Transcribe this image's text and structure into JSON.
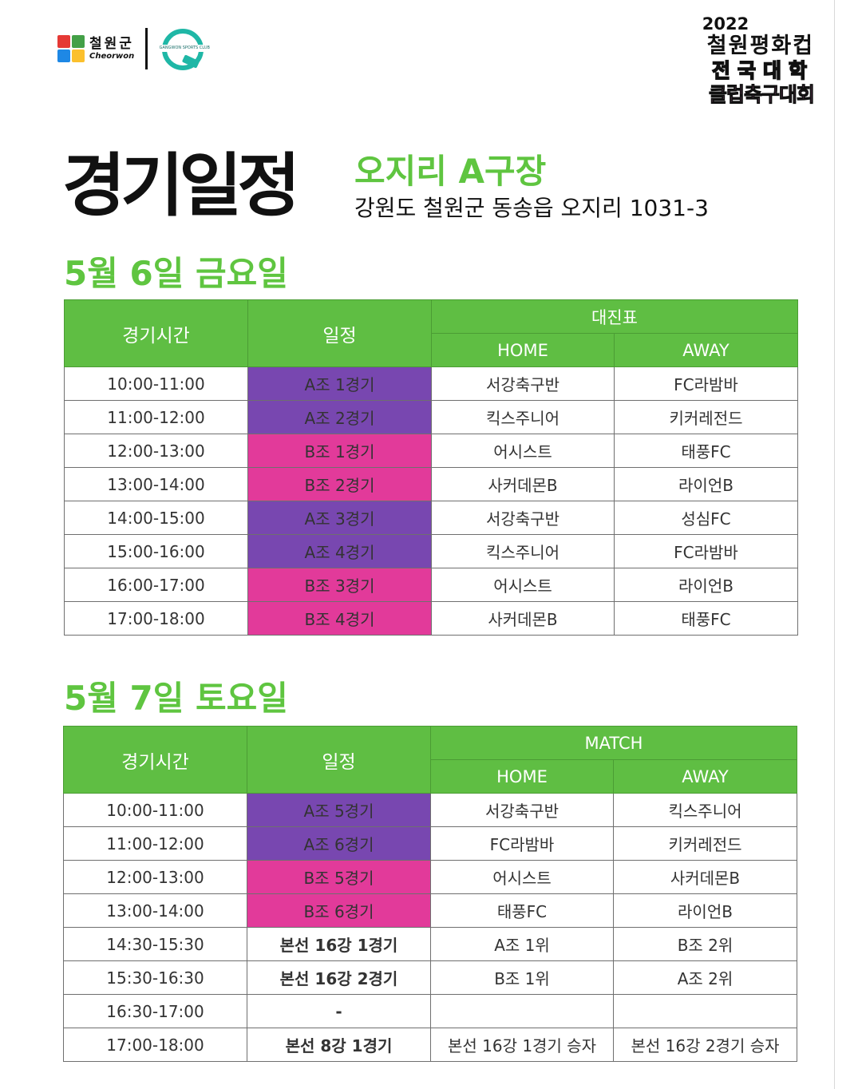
{
  "logos": {
    "cheorwon_kr": "철원군",
    "cheorwon_en": "Cheorwon",
    "gangwon_text": "GANGWON SPORTS CLUB"
  },
  "event": {
    "year": "2022",
    "line1": "철원평화컵",
    "line2": "전국대학",
    "line3": "클럽축구대회"
  },
  "headline": "경기일정",
  "venue": {
    "name": "오지리 A구장",
    "address": "강원도 철원군 동송읍 오지리 1031-3"
  },
  "days": [
    {
      "title": "5월 6일 금요일",
      "headers": {
        "time": "경기시간",
        "schedule": "일정",
        "group": "대진표",
        "home": "HOME",
        "away": "AWAY"
      },
      "rows": [
        {
          "time": "10:00-11:00",
          "match": "A조 1경기",
          "group": "A",
          "home": "서강축구반",
          "away": "FC라밤바"
        },
        {
          "time": "11:00-12:00",
          "match": "A조 2경기",
          "group": "A",
          "home": "킥스주니어",
          "away": "키커레전드"
        },
        {
          "time": "12:00-13:00",
          "match": "B조 1경기",
          "group": "B",
          "home": "어시스트",
          "away": "태풍FC"
        },
        {
          "time": "13:00-14:00",
          "match": "B조 2경기",
          "group": "B",
          "home": "사커데몬B",
          "away": "라이언B"
        },
        {
          "time": "14:00-15:00",
          "match": "A조 3경기",
          "group": "A",
          "home": "서강축구반",
          "away": "성심FC"
        },
        {
          "time": "15:00-16:00",
          "match": "A조 4경기",
          "group": "A",
          "home": "킥스주니어",
          "away": "FC라밤바"
        },
        {
          "time": "16:00-17:00",
          "match": "B조 3경기",
          "group": "B",
          "home": "어시스트",
          "away": "라이언B"
        },
        {
          "time": "17:00-18:00",
          "match": "B조 4경기",
          "group": "B",
          "home": "사커데몬B",
          "away": "태풍FC"
        }
      ]
    },
    {
      "title": "5월 7일 토요일",
      "headers": {
        "time": "경기시간",
        "schedule": "일정",
        "group": "MATCH",
        "home": "HOME",
        "away": "AWAY"
      },
      "rows": [
        {
          "time": "10:00-11:00",
          "match": "A조 5경기",
          "group": "A",
          "home": "서강축구반",
          "away": "킥스주니어"
        },
        {
          "time": "11:00-12:00",
          "match": "A조 6경기",
          "group": "A",
          "home": "FC라밤바",
          "away": "키커레전드"
        },
        {
          "time": "12:00-13:00",
          "match": "B조 5경기",
          "group": "B",
          "home": "어시스트",
          "away": "사커데몬B"
        },
        {
          "time": "13:00-14:00",
          "match": "B조 6경기",
          "group": "B",
          "home": "태풍FC",
          "away": "라이언B"
        },
        {
          "time": "14:30-15:30",
          "match": "본선 16강 1경기",
          "group": "",
          "home": "A조 1위",
          "away": "B조 2위"
        },
        {
          "time": "15:30-16:30",
          "match": "본선 16강 2경기",
          "group": "",
          "home": "B조 1위",
          "away": "A조 2위"
        },
        {
          "time": "16:30-17:00",
          "match": "-",
          "group": "",
          "home": "",
          "away": ""
        },
        {
          "time": "17:00-18:00",
          "match": "본선 8강 1경기",
          "group": "",
          "home": "본선 16강 1경기 승자",
          "away": "본선 16강 2경기 승자"
        }
      ]
    }
  ],
  "colors": {
    "green": "#5fbe43",
    "groupA": "#7847b0",
    "groupB": "#e23a9a",
    "title_green": "#5fc540"
  }
}
